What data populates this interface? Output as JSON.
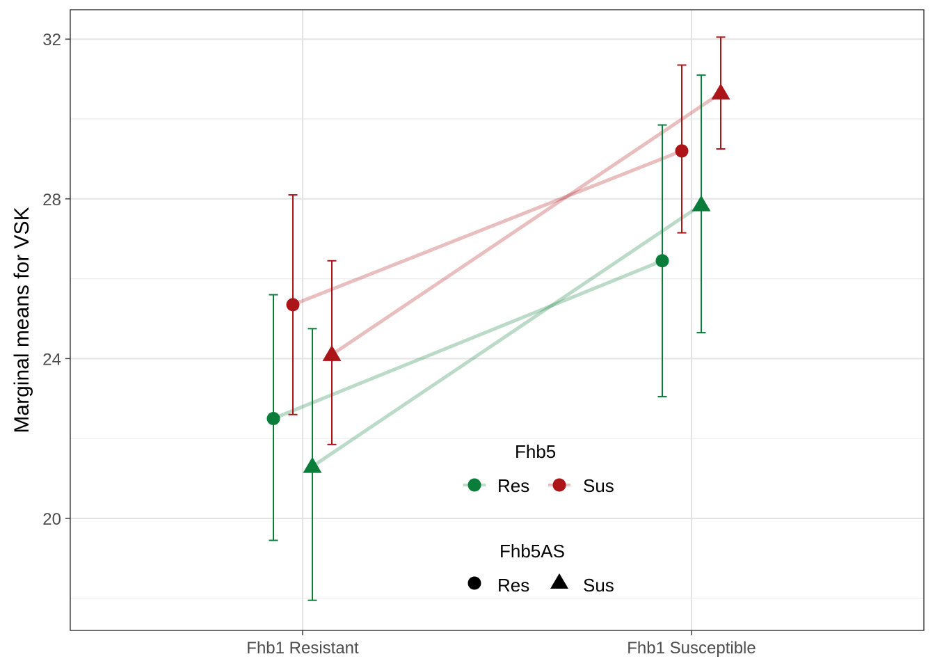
{
  "chart_data": {
    "type": "scatter",
    "title": "",
    "xlabel": "",
    "ylabel": "Marginal means for VSK",
    "categories": [
      "Fhb1 Resistant",
      "Fhb1 Susceptible"
    ],
    "ylim": [
      17.5,
      33.0
    ],
    "yticks": [
      20,
      24,
      28,
      32
    ],
    "grid": true,
    "legend_position": "bottom-center-inside",
    "colors": {
      "Res": "#0b7d3b",
      "Sus": "#ac1418"
    },
    "series": [
      {
        "fhb5": "Res",
        "fhb5as": "Res",
        "shape": "circle",
        "mean": [
          22.5,
          26.45
        ],
        "lower": [
          19.45,
          23.05
        ],
        "upper": [
          25.6,
          29.85
        ]
      },
      {
        "fhb5": "Res",
        "fhb5as": "Sus",
        "shape": "triangle",
        "mean": [
          21.3,
          27.85
        ],
        "lower": [
          17.95,
          24.65
        ],
        "upper": [
          24.75,
          31.1
        ]
      },
      {
        "fhb5": "Sus",
        "fhb5as": "Res",
        "shape": "circle",
        "mean": [
          25.35,
          29.2
        ],
        "lower": [
          22.6,
          27.15
        ],
        "upper": [
          28.1,
          31.35
        ]
      },
      {
        "fhb5": "Sus",
        "fhb5as": "Sus",
        "shape": "triangle",
        "mean": [
          24.1,
          30.65
        ],
        "lower": [
          21.85,
          29.25
        ],
        "upper": [
          26.45,
          32.05
        ]
      }
    ],
    "legend": {
      "color_title": "Fhb5",
      "color_items": [
        "Res",
        "Sus"
      ],
      "shape_title": "Fhb5AS",
      "shape_items": [
        "Res",
        "Sus"
      ]
    }
  }
}
